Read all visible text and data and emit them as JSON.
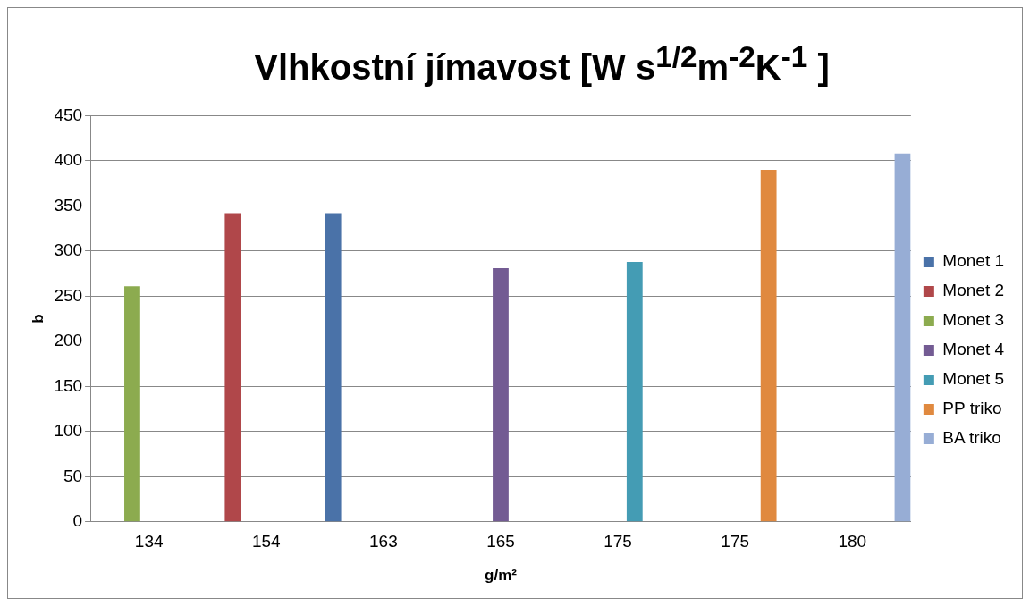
{
  "chart_data": {
    "type": "bar",
    "title": "Vlhkostní jímavost [W s$^{1/2}$m$^{-2}$K$^{-1}$ ]",
    "xlabel": "g/m²",
    "ylabel": "b",
    "categories": [
      "134",
      "154",
      "163",
      "165",
      "175",
      "175",
      "180"
    ],
    "series": [
      {
        "name": "Monet 1",
        "color": "#4a72a8",
        "values": [
          null,
          null,
          342,
          null,
          null,
          null,
          null
        ]
      },
      {
        "name": "Monet 2",
        "color": "#b0474a",
        "values": [
          null,
          342,
          null,
          null,
          null,
          null,
          null
        ]
      },
      {
        "name": "Monet 3",
        "color": "#8cab4f",
        "values": [
          261,
          null,
          null,
          null,
          null,
          null,
          null
        ]
      },
      {
        "name": "Monet 4",
        "color": "#735b93",
        "values": [
          null,
          null,
          null,
          281,
          null,
          null,
          null
        ]
      },
      {
        "name": "Monet 5",
        "color": "#449cb4",
        "values": [
          null,
          null,
          null,
          null,
          288,
          null,
          null
        ]
      },
      {
        "name": "PP triko",
        "color": "#e0893f",
        "values": [
          null,
          null,
          null,
          null,
          null,
          390,
          null
        ]
      },
      {
        "name": "BA triko",
        "color": "#97add5",
        "values": [
          null,
          null,
          null,
          null,
          null,
          null,
          408
        ]
      }
    ],
    "ylim": [
      0,
      450
    ],
    "yticks": [
      0,
      50,
      100,
      150,
      200,
      250,
      300,
      350,
      400,
      450
    ],
    "grid": "y",
    "legend": "right"
  }
}
